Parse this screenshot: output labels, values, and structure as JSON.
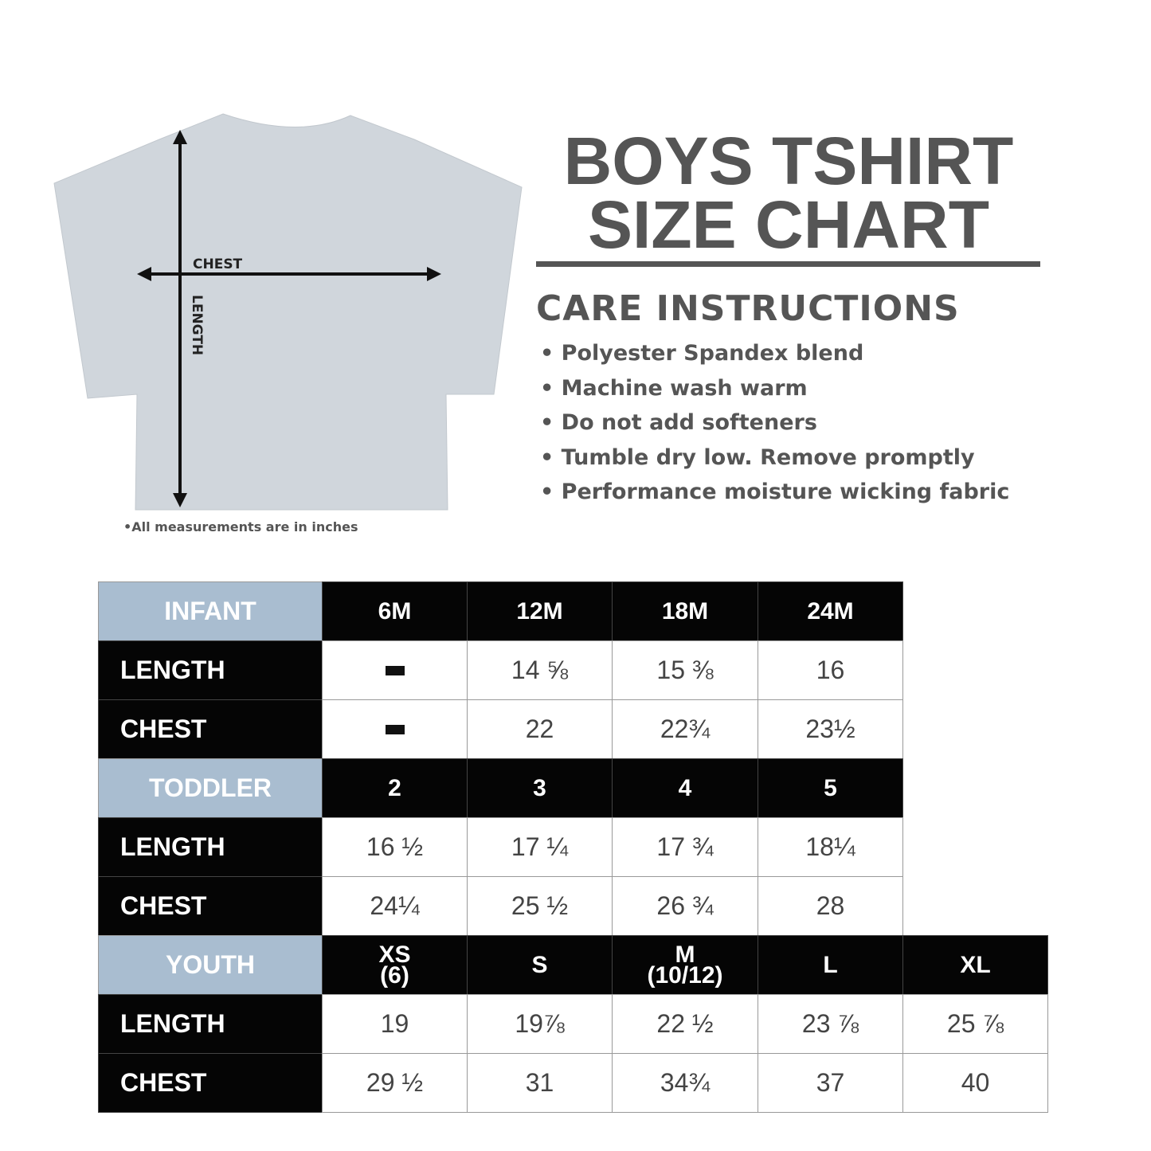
{
  "title_line1": "BOYS TSHIRT",
  "title_line2": "SIZE CHART",
  "care_heading": "CARE INSTRUCTIONS",
  "care_items": [
    "Polyester Spandex blend",
    "Machine wash warm",
    "Do not add softeners",
    "Tumble dry low. Remove promptly",
    "Performance moisture wicking fabric"
  ],
  "diagram": {
    "chest_label": "CHEST",
    "length_label": "LENGTH",
    "shirt_color": "#d0d6dc"
  },
  "note": "•All measurements are in inches",
  "colors": {
    "group_header": "#a9bdd0",
    "header_black": "#050505",
    "value_text": "#444444",
    "title_gray": "#555555"
  },
  "sections": [
    {
      "name": "INFANT",
      "sizes": [
        "6M",
        "12M",
        "18M",
        "24M"
      ],
      "rows": [
        {
          "label": "LENGTH",
          "values": [
            "—",
            "14 ⅝",
            "15 ⅜",
            "16"
          ]
        },
        {
          "label": "CHEST",
          "values": [
            "—",
            "22",
            "22¾",
            "23½"
          ]
        }
      ]
    },
    {
      "name": "TODDLER",
      "sizes": [
        "2",
        "3",
        "4",
        "5"
      ],
      "rows": [
        {
          "label": "LENGTH",
          "values": [
            "16 ½",
            "17 ¼",
            "17 ¾",
            "18¼"
          ]
        },
        {
          "label": "CHEST",
          "values": [
            "24¼",
            "25 ½",
            "26 ¾",
            "28"
          ]
        }
      ]
    },
    {
      "name": "YOUTH",
      "sizes": [
        "XS\n(6)",
        "S",
        "M\n(10/12)",
        "L",
        "XL"
      ],
      "rows": [
        {
          "label": "LENGTH",
          "values": [
            "19",
            "19⅞",
            "22 ½",
            "23 ⅞",
            "25 ⅞"
          ]
        },
        {
          "label": "CHEST",
          "values": [
            "29 ½",
            "31",
            "34¾",
            "37",
            "40"
          ]
        }
      ]
    }
  ]
}
